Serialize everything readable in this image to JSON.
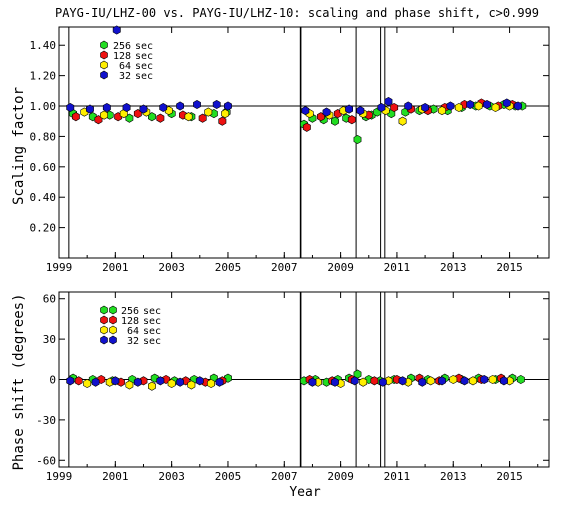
{
  "colors": {
    "series_256": "#22dd22",
    "series_128": "#ee1111",
    "series_64": "#ffee00",
    "series_32": "#1111cc"
  },
  "chart_data": [
    {
      "type": "scatter",
      "title": "PAYG-IU/LHZ-00 vs. PAYG-IU/LHZ-10: scaling and phase shift, c>0.999",
      "ylabel": "Scaling factor",
      "xlabel": "",
      "xlim": [
        1999,
        2016.4
      ],
      "ylim": [
        0,
        1.52
      ],
      "x_ticks": [
        1999,
        2001,
        2003,
        2005,
        2007,
        2009,
        2011,
        2013,
        2015
      ],
      "y_ticks": [
        0.2,
        0.4,
        0.6,
        0.8,
        1.0,
        1.2,
        1.4
      ],
      "y_tick_labels": [
        "0.20",
        "0.40",
        "0.60",
        "0.80",
        "1.00",
        "1.20",
        "1.40"
      ],
      "reference_line": 1.0,
      "vertical_lines": [
        1999.35,
        2007.58,
        2009.55,
        2010.42,
        2010.57
      ],
      "legend_position": "top-left",
      "series": [
        {
          "name": "256 sec",
          "color_key": "series_256",
          "x": [
            1999.5,
            2000.2,
            2000.8,
            2001.5,
            2002.3,
            2003.0,
            2003.7,
            2004.5,
            2004.95,
            2007.7,
            2008.0,
            2008.4,
            2008.8,
            2009.2,
            2009.6,
            2009.9,
            2010.1,
            2010.3,
            2010.8,
            2011.3,
            2011.8,
            2012.3,
            2012.8,
            2013.3,
            2013.8,
            2014.3,
            2014.8,
            2015.2,
            2015.45
          ],
          "y": [
            0.95,
            0.93,
            0.94,
            0.92,
            0.93,
            0.95,
            0.93,
            0.95,
            0.96,
            0.88,
            0.92,
            0.91,
            0.9,
            0.92,
            0.78,
            0.93,
            0.94,
            0.96,
            0.95,
            0.96,
            0.97,
            0.98,
            0.97,
            0.99,
            1.0,
            1.0,
            1.01,
            1.0,
            1.0
          ]
        },
        {
          "name": "128 sec",
          "color_key": "series_128",
          "x": [
            1999.6,
            2000.4,
            2001.1,
            2001.8,
            2002.6,
            2003.4,
            2004.1,
            2004.8,
            2007.8,
            2008.3,
            2008.9,
            2009.4,
            2010.0,
            2010.9,
            2011.5,
            2012.1,
            2012.7,
            2013.4,
            2014.0,
            2014.6,
            2015.1
          ],
          "y": [
            0.93,
            0.91,
            0.93,
            0.95,
            0.92,
            0.94,
            0.92,
            0.9,
            0.86,
            0.93,
            0.95,
            0.91,
            0.94,
            0.99,
            0.98,
            0.97,
            0.99,
            1.01,
            1.02,
            1.0,
            1.01
          ]
        },
        {
          "name": "64 sec",
          "color_key": "series_64",
          "x": [
            1999.9,
            2000.6,
            2001.3,
            2002.1,
            2002.9,
            2003.6,
            2004.3,
            2004.9,
            2007.9,
            2008.6,
            2009.1,
            2009.8,
            2010.6,
            2011.2,
            2011.9,
            2012.6,
            2013.2,
            2013.9,
            2014.5,
            2015.0
          ],
          "y": [
            0.96,
            0.94,
            0.95,
            0.96,
            0.97,
            0.93,
            0.96,
            0.95,
            0.95,
            0.94,
            0.97,
            0.95,
            0.97,
            0.9,
            0.98,
            0.97,
            0.99,
            1.0,
            0.99,
            1.0
          ]
        },
        {
          "name": "32 sec",
          "color_key": "series_32",
          "x": [
            1999.4,
            2000.1,
            2000.7,
            2001.05,
            2001.4,
            2002.0,
            2002.7,
            2003.3,
            2003.9,
            2004.6,
            2005.0,
            2007.75,
            2008.5,
            2009.3,
            2009.7,
            2010.45,
            2010.7,
            2011.4,
            2012.0,
            2012.9,
            2013.6,
            2014.2,
            2014.9,
            2015.3
          ],
          "y": [
            0.99,
            0.98,
            0.99,
            1.5,
            0.99,
            0.98,
            0.99,
            1.0,
            1.01,
            1.01,
            1.0,
            0.97,
            0.96,
            0.98,
            0.97,
            0.99,
            1.03,
            1.0,
            0.99,
            1.0,
            1.01,
            1.01,
            1.02,
            1.0
          ]
        }
      ]
    },
    {
      "type": "scatter",
      "title": "",
      "ylabel": "Phase shift (degrees)",
      "xlabel": "Year",
      "xlim": [
        1999,
        2016.4
      ],
      "ylim": [
        -65,
        65
      ],
      "x_ticks": [
        1999,
        2001,
        2003,
        2005,
        2007,
        2009,
        2011,
        2013,
        2015
      ],
      "y_ticks": [
        -60,
        -30,
        0,
        30,
        60
      ],
      "y_tick_labels": [
        "-60",
        "-30",
        "0",
        "30",
        "60"
      ],
      "reference_line": 0,
      "vertical_lines": [
        1999.35,
        2007.58,
        2009.55,
        2010.42,
        2010.57
      ],
      "legend_position": "top-left",
      "series": [
        {
          "name": "256 sec",
          "color_key": "series_256",
          "x": [
            1999.5,
            2000.2,
            2000.9,
            2001.6,
            2002.4,
            2003.1,
            2003.8,
            2004.5,
            2005.0,
            2007.7,
            2008.1,
            2008.5,
            2008.9,
            2009.3,
            2009.6,
            2010.0,
            2010.4,
            2010.9,
            2011.5,
            2012.1,
            2012.7,
            2013.3,
            2013.9,
            2014.5,
            2015.1,
            2015.4
          ],
          "y": [
            1,
            0,
            -1,
            0,
            1,
            -1,
            0,
            1,
            1,
            -1,
            0,
            -2,
            0,
            1,
            4,
            0,
            -1,
            0,
            1,
            0,
            1,
            0,
            1,
            0,
            1,
            0
          ]
        },
        {
          "name": "128 sec",
          "color_key": "series_128",
          "x": [
            1999.7,
            2000.5,
            2001.2,
            2002.0,
            2002.8,
            2003.5,
            2004.2,
            2004.8,
            2007.9,
            2008.7,
            2009.4,
            2010.2,
            2011.0,
            2011.8,
            2012.5,
            2013.2,
            2014.0,
            2014.7
          ],
          "y": [
            -1,
            0,
            -2,
            -1,
            0,
            -1,
            -2,
            -1,
            0,
            -1,
            0,
            -1,
            0,
            1,
            -1,
            1,
            0,
            1
          ]
        },
        {
          "name": "64 sec",
          "color_key": "series_64",
          "x": [
            2000.0,
            2000.8,
            2001.5,
            2002.3,
            2003.0,
            2003.7,
            2004.4,
            2008.2,
            2009.0,
            2009.8,
            2010.7,
            2011.4,
            2012.2,
            2013.0,
            2013.7,
            2014.4,
            2015.0
          ],
          "y": [
            -3,
            -2,
            -4,
            -5,
            -3,
            -4,
            -3,
            -2,
            -3,
            -2,
            -1,
            -2,
            -1,
            0,
            -1,
            0,
            -1
          ]
        },
        {
          "name": "32 sec",
          "color_key": "series_32",
          "x": [
            1999.4,
            2000.3,
            2001.0,
            2001.8,
            2002.6,
            2003.3,
            2004.0,
            2004.7,
            2008.0,
            2008.8,
            2009.5,
            2010.5,
            2011.2,
            2011.9,
            2012.6,
            2013.4,
            2014.1,
            2014.8
          ],
          "y": [
            -1,
            -2,
            -1,
            -2,
            -1,
            -2,
            -1,
            -2,
            -2,
            -2,
            -1,
            -2,
            -1,
            -2,
            -1,
            -1,
            0,
            -1
          ]
        }
      ]
    }
  ]
}
